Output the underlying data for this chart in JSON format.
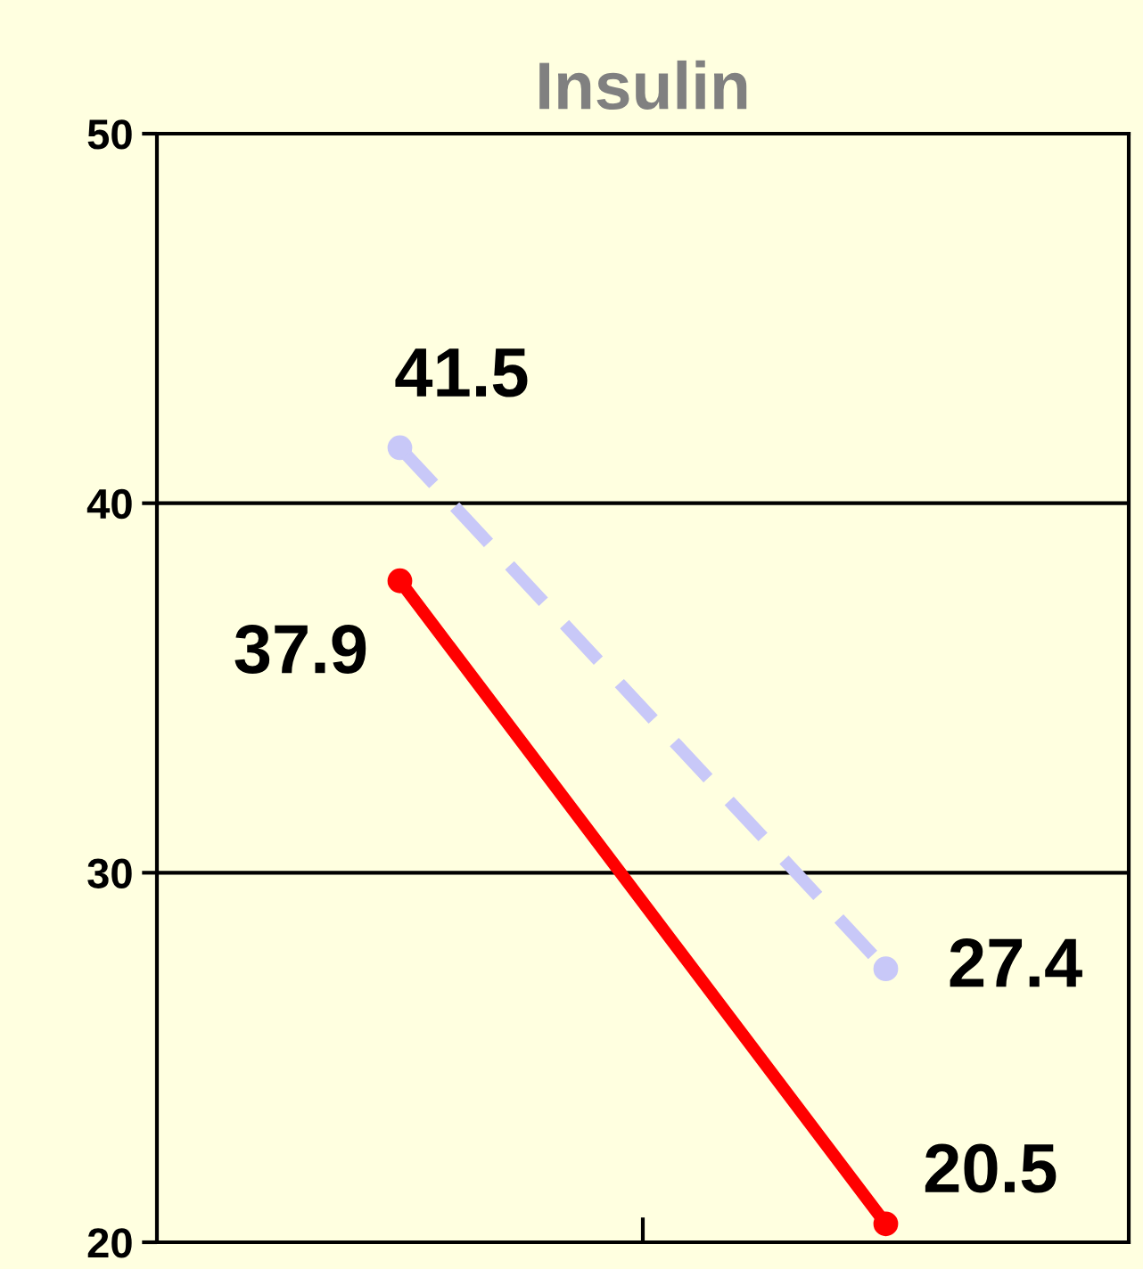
{
  "chart_data": {
    "type": "line",
    "title": "Insulin",
    "categories": [
      null,
      null
    ],
    "series": [
      {
        "color": "#c8c8f8",
        "values": [
          41.5,
          27.4
        ],
        "line_style": "dashed"
      },
      {
        "color": "#ff0000",
        "values": [
          37.9,
          20.5
        ],
        "line_style": "solid"
      }
    ],
    "ylim": [
      20,
      50
    ],
    "yticks": [
      20,
      30,
      40,
      50
    ],
    "grid": "y",
    "marker": "circle",
    "data_labels": true
  }
}
